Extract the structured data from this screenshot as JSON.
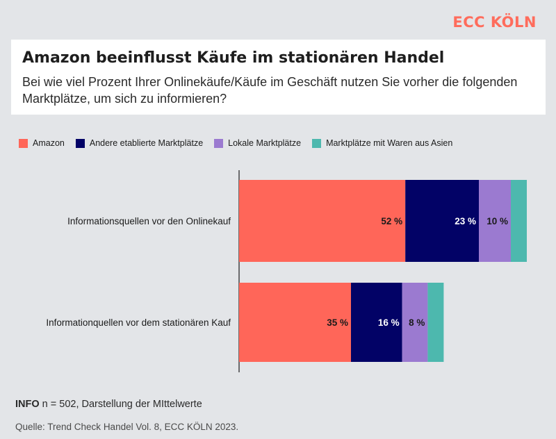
{
  "brand": "ECC KÖLN",
  "colors": {
    "brand": "#ff6c5c",
    "amazon": "#ff6659",
    "etabliert": "#020266",
    "lokal": "#9b7ad0",
    "asien": "#4db8ae",
    "background": "#e3e5e8",
    "label_dark": "#1a1a1a",
    "label_light": "#ffffff"
  },
  "header": {
    "title": "Amazon beeinflusst Käufe im stationären Handel",
    "subtitle": "Bei wie viel Prozent Ihrer Onlinekäufe/Käufe im Geschäft nutzen Sie vorher die folgenden Marktplätze, um sich zu informieren?"
  },
  "footer": {
    "info_label": "INFO",
    "info_text": "n = 502, Darstellung der MIttelwerte",
    "source": "Quelle: Trend Check Handel Vol. 8, ECC KÖLN 2023."
  },
  "chart_data": {
    "type": "bar",
    "orientation": "horizontal",
    "stacked": true,
    "categories": [
      "Informationsquellen vor den Onlinekauf",
      "Informationquellen vor dem stationären Kauf"
    ],
    "series": [
      {
        "name": "Amazon",
        "values": [
          52,
          35
        ],
        "labels": [
          "52 %",
          "35 %"
        ],
        "color": "#ff6659"
      },
      {
        "name": "Andere etablierte Marktplätze",
        "values": [
          23,
          16
        ],
        "labels": [
          "23 %",
          "16 %"
        ],
        "color": "#020266"
      },
      {
        "name": "Lokale Marktplätze",
        "values": [
          10,
          8
        ],
        "labels": [
          "10 %",
          "8 %"
        ],
        "color": "#9b7ad0"
      },
      {
        "name": "Marktplätze mit Waren aus Asien",
        "values": [
          5,
          5
        ],
        "labels": [
          "",
          ""
        ],
        "color": "#4db8ae"
      }
    ],
    "xlim": [
      0,
      100
    ],
    "grid": false,
    "legend_position": "top-left"
  }
}
